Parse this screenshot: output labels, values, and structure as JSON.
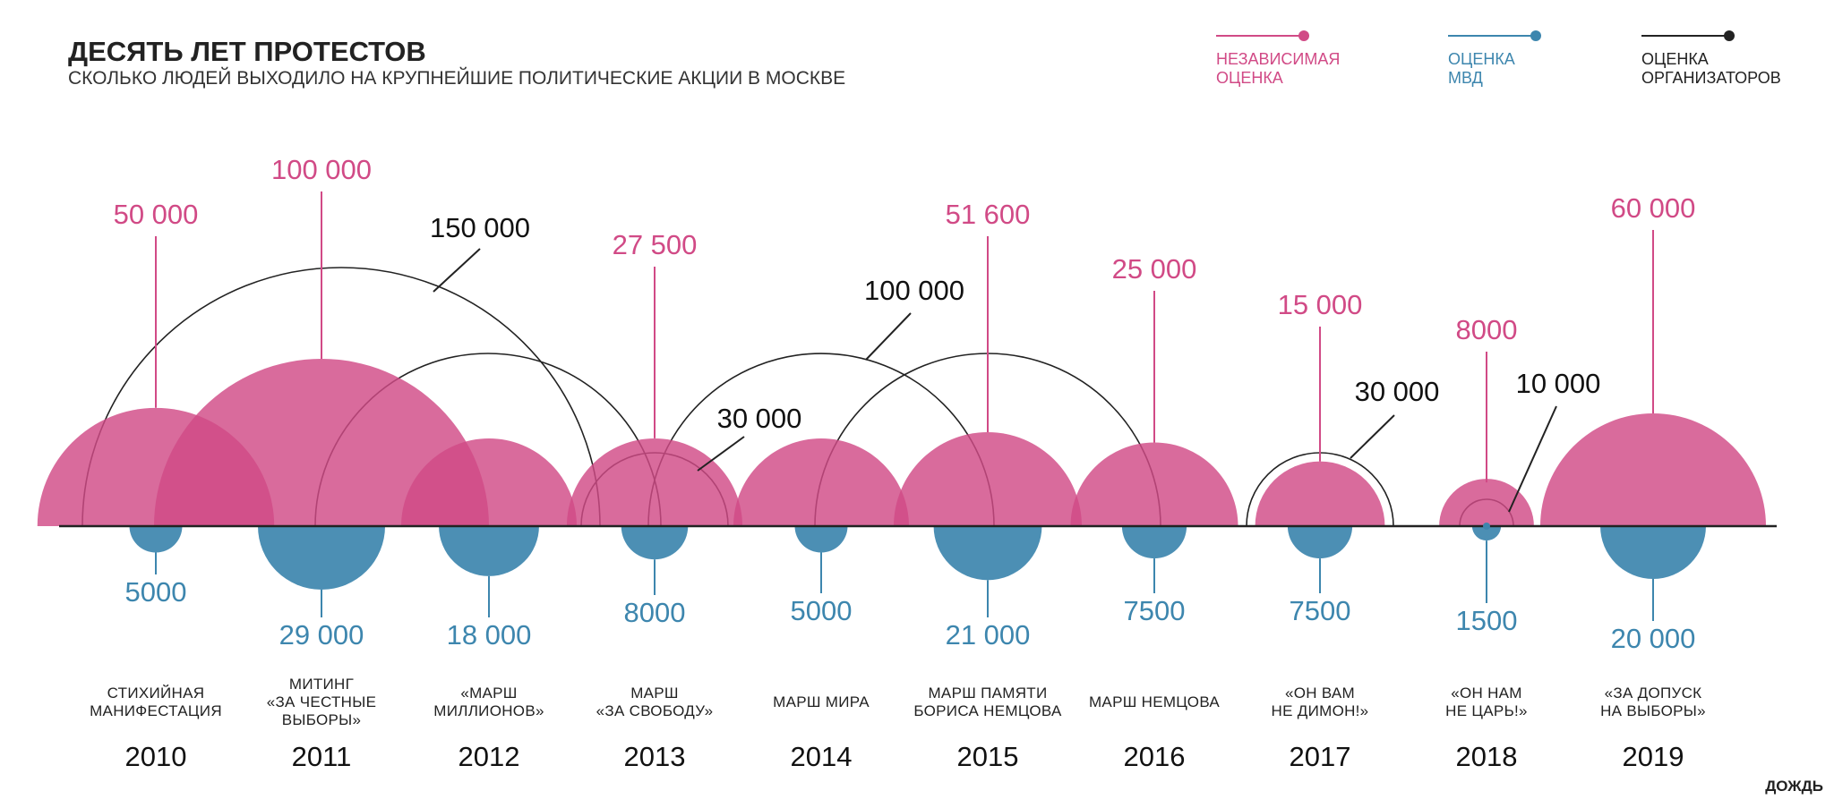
{
  "colors": {
    "independent": "#D14A86",
    "police": "#3D86AE",
    "organizers": "#222222"
  },
  "header": {
    "title": "ДЕСЯТЬ ЛЕТ ПРОТЕСТОВ",
    "subtitle": "СКОЛЬКО ЛЮДЕЙ ВЫХОДИЛО НА КРУПНЕЙШИЕ ПОЛИТИЧЕСКИЕ АКЦИИ В МОСКВЕ"
  },
  "legend": [
    {
      "key": "independent",
      "lines": [
        "НЕЗАВИСИМАЯ",
        "ОЦЕНКА"
      ]
    },
    {
      "key": "police",
      "lines": [
        "ОЦЕНКА",
        "МВД"
      ]
    },
    {
      "key": "organizers",
      "lines": [
        "ОЦЕНКА",
        "ОРГАНИЗАТОРОВ"
      ]
    }
  ],
  "logo": "ДОЖДЬ",
  "chart_data": {
    "type": "bubble-timeline",
    "title": "ДЕСЯТЬ ЛЕТ ПРОТЕСТОВ",
    "subtitle": "СКОЛЬКО ЛЮДЕЙ ВЫХОДИЛО НА КРУПНЕЙШИЕ ПОЛИТИЧЕСКИЕ АКЦИИ В МОСКВЕ",
    "categories": [
      "2010",
      "2011",
      "2012",
      "2013",
      "2014",
      "2015",
      "2016",
      "2017",
      "2018",
      "2019"
    ],
    "series": [
      {
        "name": "НЕЗАВИСИМАЯ ОЦЕНКА",
        "values": [
          50000,
          100000,
          50000,
          27500,
          51600,
          51600,
          25000,
          15000,
          8000,
          60000
        ]
      },
      {
        "name": "ОЦЕНКА МВД",
        "values": [
          5000,
          29000,
          18000,
          8000,
          5000,
          21000,
          7500,
          7500,
          1500,
          20000
        ]
      },
      {
        "name": "ОЦЕНКА ОРГАНИЗАТОРОВ",
        "values": [
          null,
          150000,
          100000,
          30000,
          100000,
          100000,
          null,
          30000,
          10000,
          null
        ]
      }
    ],
    "events": [
      {
        "year": "2010",
        "name": [
          "СТИХИЙНАЯ",
          "МАНИФЕСТАЦИЯ"
        ],
        "independent": 50000,
        "independent_label": "50 000",
        "police": 5000,
        "police_label": "5000",
        "organizers": null,
        "organizers_label": ""
      },
      {
        "year": "2011",
        "name": [
          "МИТИНГ",
          "«ЗА ЧЕСТНЫЕ",
          "ВЫБОРЫ»"
        ],
        "independent": 100000,
        "independent_label": "100 000",
        "police": 29000,
        "police_label": "29 000",
        "organizers": 150000,
        "organizers_label": "150 000"
      },
      {
        "year": "2012",
        "name": [
          "«МАРШ",
          "МИЛЛИОНОВ»"
        ],
        "independent": 50000,
        "independent_label": "",
        "police": 18000,
        "police_label": "18 000",
        "organizers": 100000,
        "organizers_label": ""
      },
      {
        "year": "2013",
        "name": [
          "МАРШ",
          "«ЗА СВОБОДУ»"
        ],
        "independent": 27500,
        "independent_label": "27 500",
        "police": 8000,
        "police_label": "8000",
        "organizers": 30000,
        "organizers_label": "30 000"
      },
      {
        "year": "2014",
        "name": [
          "МАРШ МИРА"
        ],
        "independent": 51600,
        "independent_label": "",
        "police": 5000,
        "police_label": "5000",
        "organizers": 100000,
        "organizers_label": "100 000"
      },
      {
        "year": "2015",
        "name": [
          "МАРШ ПАМЯТИ",
          "БОРИСА НЕМЦОВА"
        ],
        "independent": 51600,
        "independent_label": "51 600",
        "police": 21000,
        "police_label": "21 000",
        "organizers": 100000,
        "organizers_label": ""
      },
      {
        "year": "2016",
        "name": [
          "МАРШ НЕМЦОВА"
        ],
        "independent": 25000,
        "independent_label": "25 000",
        "police": 7500,
        "police_label": "7500",
        "organizers": null,
        "organizers_label": ""
      },
      {
        "year": "2017",
        "name": [
          "«ОН ВАМ",
          "НЕ ДИМОН!»"
        ],
        "independent": 15000,
        "independent_label": "15 000",
        "police": 7500,
        "police_label": "7500",
        "organizers": 30000,
        "organizers_label": "30 000"
      },
      {
        "year": "2018",
        "name": [
          "«ОН НАМ",
          "НЕ ЦАРЬ!»"
        ],
        "independent": 8000,
        "independent_label": "8000",
        "police": 1500,
        "police_label": "1500",
        "organizers": 10000,
        "organizers_label": "10 000"
      },
      {
        "year": "2019",
        "name": [
          "«ЗА ДОПУСК",
          "НА ВЫБОРЫ»"
        ],
        "independent": 60000,
        "independent_label": "60 000",
        "police": 20000,
        "police_label": "20 000",
        "organizers": null,
        "organizers_label": ""
      }
    ],
    "grid": false,
    "legend_position": "top-right"
  }
}
